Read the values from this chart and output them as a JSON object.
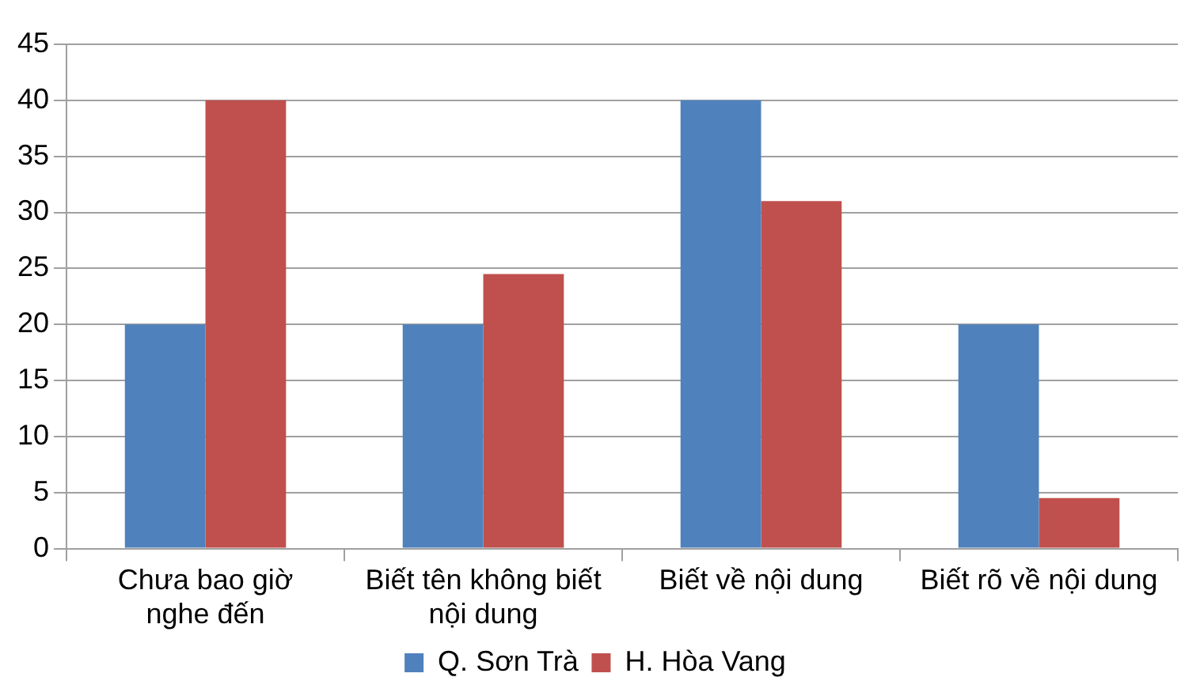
{
  "chart_data": {
    "type": "bar",
    "categories": [
      "Chưa bao giờ nghe đến",
      "Biết tên không biết nội dung",
      "Biết về nội dung",
      "Biết rõ về nội dung"
    ],
    "series": [
      {
        "name": "Q. Sơn Trà",
        "color": "#4f81bd",
        "values": [
          20,
          20,
          40,
          20
        ]
      },
      {
        "name": "H. Hòa Vang",
        "color": "#c0504d",
        "values": [
          40,
          24.5,
          31,
          4.5
        ]
      }
    ],
    "ylim": [
      0,
      45
    ],
    "yticks": [
      0,
      5,
      10,
      15,
      20,
      25,
      30,
      35,
      40,
      45
    ],
    "grid": "y",
    "legend": "bottom"
  }
}
